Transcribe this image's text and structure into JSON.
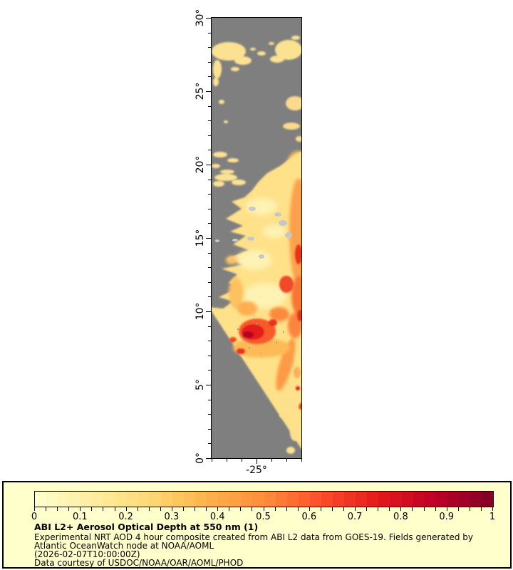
{
  "figure": {
    "background_color": "#ffffff",
    "map": {
      "no_data_color": "#7f7f7f",
      "cloud_color": "#c4c8cc",
      "frame_color": "#000000",
      "lat_axis": {
        "range": [
          0,
          30
        ],
        "minor_step_deg": 1,
        "major_ticks": [
          {
            "value": 30,
            "label": "30°"
          },
          {
            "value": 25,
            "label": "25°"
          },
          {
            "value": 20,
            "label": "20°"
          },
          {
            "value": 15,
            "label": "15°"
          },
          {
            "value": 10,
            "label": "10°"
          },
          {
            "value": 5,
            "label": "5°"
          },
          {
            "value": 0,
            "label": "0°"
          }
        ]
      },
      "lon_axis": {
        "major_tick": {
          "label": "-25°"
        },
        "minor_tick_count": 7
      }
    },
    "legend": {
      "background_color": "#ffffcc",
      "border_color": "#000000",
      "colorbar": {
        "min": 0,
        "max": 1,
        "steps": 40,
        "minor_tick_interval": 0.025,
        "tick_labels": [
          "0",
          "0.1",
          "0.2",
          "0.3",
          "0.4",
          "0.5",
          "0.6",
          "0.7",
          "0.8",
          "0.9",
          "1"
        ],
        "colormap_name": "YlOrRd",
        "colormap_stops": [
          "#ffffcc",
          "#ffeda0",
          "#fed976",
          "#feb24c",
          "#fd8d3c",
          "#fc4e2a",
          "#e31a1c",
          "#bd0026",
          "#800026"
        ]
      },
      "title": "ABI L2+ Aerosol Optical Depth at 550 nm (1)",
      "description": "Experimental NRT AOD 4 hour composite created from ABI L2 data from GOES-19. Fields generated by Atlantic OceanWatch node at NOAA/AOML",
      "timestamp": "(2026-02-07T10:00:00Z)",
      "credit": "Data courtesy of USDOC/NOAA/OAR/AOML/PHOD"
    }
  },
  "chart_data": {
    "type": "heatmap",
    "title": "ABI L2+ Aerosol Optical Depth at 550 nm (1)",
    "y_axis": {
      "kind": "latitude",
      "tick_labels": [
        "0°",
        "5°",
        "10°",
        "15°",
        "20°",
        "25°",
        "30°"
      ],
      "range_deg": [
        0,
        30
      ]
    },
    "x_axis": {
      "kind": "longitude",
      "tick_labels": [
        "-25°"
      ],
      "approx_range_deg": [
        -29,
        -21
      ]
    },
    "colorbar": {
      "quantity": "Aerosol optical depth at 550 nm",
      "min": 0,
      "max": 1,
      "tick_values": [
        0,
        0.1,
        0.2,
        0.3,
        0.4,
        0.5,
        0.6,
        0.7,
        0.8,
        0.9,
        1
      ],
      "colormap": "YlOrRd",
      "discrete_steps": 40
    },
    "no_data_color": "#7f7f7f",
    "features": [
      "Pale yellow low-AOD (~0.1-0.2) cloud-like patches across 27N-30N",
      "Mostly no-data gray between 21N and 26N with small AOD patches near the east edge",
      "Moderate AOD field (~0.2-0.4) from 10N to 18N widening southward, orange (~0.5-0.6) along east edge",
      "Intense dust/smoke plume with AOD 0.7-0.95 centered near 8N-10N, -26E",
      "Diagonal satellite-swath data edge running from ~12N at west side down to ~1N at east side",
      "Scattered light-gray cloud pixels around 14N-16N"
    ]
  }
}
